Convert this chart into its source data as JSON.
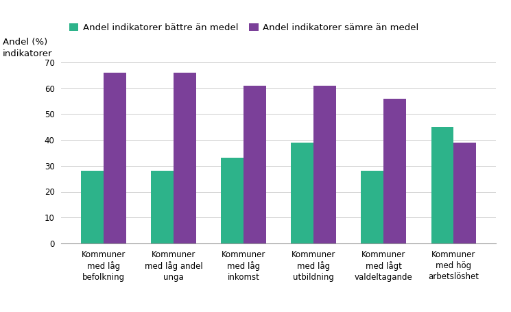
{
  "categories": [
    "Kommuner\nmed låg\nbefolkning",
    "Kommuner\nmed låg andel\nunga",
    "Kommuner\nmed låg\ninkomst",
    "Kommuner\nmed låg\nutbildning",
    "Kommuner\nmed lågt\nvaldeltagande",
    "Kommuner\nmed hög\narbetslöshet"
  ],
  "series": [
    {
      "label": "Andel indikatorer bättre än medel",
      "values": [
        28,
        28,
        33,
        39,
        28,
        45
      ],
      "color": "#2db38a"
    },
    {
      "label": "Andel indikatorer sämre än medel",
      "values": [
        66,
        66,
        61,
        61,
        56,
        39
      ],
      "color": "#7b4099"
    }
  ],
  "ylabel": "Andel (%)\nindikatorer",
  "ylim": [
    0,
    70
  ],
  "yticks": [
    0,
    10,
    20,
    30,
    40,
    50,
    60,
    70
  ],
  "background_color": "#ffffff",
  "bar_width": 0.32,
  "tick_fontsize": 8.5,
  "legend_fontsize": 9.5,
  "ylabel_fontsize": 9.5
}
